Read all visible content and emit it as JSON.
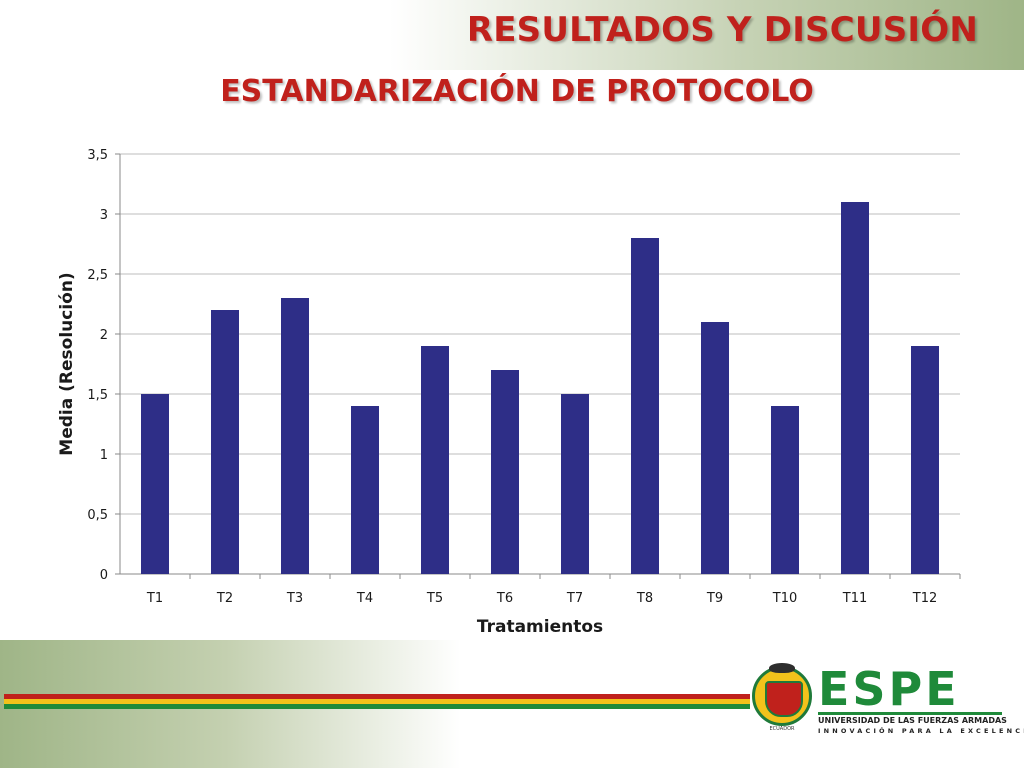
{
  "slide": {
    "title": "RESULTADOS Y DISCUSIÓN",
    "subtitle": "ESTANDARIZACIÓN DE PROTOCOLO"
  },
  "logo": {
    "mark": "ESPE",
    "line1": "UNIVERSIDAD DE LAS FUERZAS ARMADAS",
    "line2": "INNOVACIÓN PARA LA EXCELENCIA",
    "emblem_caption": "ECUADOR",
    "colors": {
      "green": "#1f8a3a",
      "gold": "#f2c21b",
      "red": "#c0211c"
    }
  },
  "stripes": {
    "colors": [
      "#c0211c",
      "#f2c21b",
      "#1f8a3a"
    ]
  },
  "chart_data": {
    "type": "bar",
    "categories": [
      "T1",
      "T2",
      "T3",
      "T4",
      "T5",
      "T6",
      "T7",
      "T8",
      "T9",
      "T10",
      "T11",
      "T12"
    ],
    "values": [
      1.5,
      2.2,
      2.3,
      1.4,
      1.9,
      1.7,
      1.5,
      2.8,
      2.1,
      1.4,
      3.1,
      1.9
    ],
    "title": "",
    "xlabel": "Tratamientos",
    "ylabel": "Media (Resolución)",
    "ylim": [
      0,
      3.5
    ],
    "yticks": [
      0,
      0.5,
      1,
      1.5,
      2,
      2.5,
      3,
      3.5
    ],
    "ytick_labels": [
      "0",
      "0,5",
      "1",
      "1,5",
      "2",
      "2,5",
      "3",
      "3,5"
    ],
    "grid": true,
    "legend": "none",
    "bar_color": "#2e2e87"
  }
}
